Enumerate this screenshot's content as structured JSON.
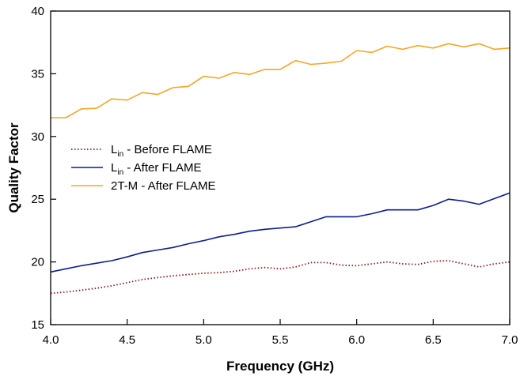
{
  "chart_data": {
    "type": "line",
    "title": "",
    "xlabel": "Frequency (GHz)",
    "ylabel": "Quality Factor",
    "xlim": [
      4.0,
      7.0
    ],
    "ylim": [
      15,
      40
    ],
    "xticks": [
      "4.0",
      "4.5",
      "5.0",
      "5.5",
      "6.0",
      "6.5",
      "7.0"
    ],
    "yticks": [
      "15",
      "20",
      "25",
      "30",
      "35",
      "40"
    ],
    "x": [
      4.0,
      4.1,
      4.2,
      4.3,
      4.4,
      4.5,
      4.6,
      4.7,
      4.8,
      4.9,
      5.0,
      5.1,
      5.2,
      5.3,
      5.4,
      5.5,
      5.6,
      5.7,
      5.8,
      5.9,
      6.0,
      6.1,
      6.2,
      6.3,
      6.4,
      6.5,
      6.6,
      6.7,
      6.8,
      6.9,
      7.0
    ],
    "grid": false,
    "legend_position": "left-middle",
    "series": [
      {
        "legend_main": "L",
        "legend_sub": "in",
        "legend_suffix": " - Before FLAME",
        "color": "#8b1a1a",
        "style": "dotted",
        "values": [
          17.5,
          17.6,
          17.75,
          17.9,
          18.1,
          18.35,
          18.6,
          18.75,
          18.9,
          19.0,
          19.1,
          19.15,
          19.25,
          19.45,
          19.55,
          19.45,
          19.6,
          19.95,
          19.95,
          19.75,
          19.7,
          19.85,
          20.0,
          19.85,
          19.8,
          20.05,
          20.1,
          19.85,
          19.6,
          19.85,
          20.0
        ]
      },
      {
        "legend_main": "L",
        "legend_sub": "in",
        "legend_suffix": " - After FLAME",
        "color": "#0a1f8f",
        "style": "solid",
        "values": [
          19.2,
          19.45,
          19.7,
          19.9,
          20.1,
          20.4,
          20.75,
          20.95,
          21.15,
          21.45,
          21.7,
          22.0,
          22.2,
          22.45,
          22.6,
          22.7,
          22.8,
          23.2,
          23.6,
          23.6,
          23.6,
          23.85,
          24.15,
          24.15,
          24.15,
          24.5,
          25.0,
          24.85,
          24.6,
          25.05,
          25.5
        ]
      },
      {
        "legend_main": "2T-M - After FLAME",
        "legend_sub": "",
        "legend_suffix": "",
        "color": "#f5a623",
        "style": "solid",
        "values": [
          31.5,
          31.5,
          32.2,
          32.25,
          33.0,
          32.9,
          33.5,
          33.35,
          33.9,
          34.0,
          34.8,
          34.65,
          35.1,
          34.95,
          35.35,
          35.35,
          36.05,
          35.75,
          35.85,
          36.0,
          36.85,
          36.7,
          37.2,
          36.95,
          37.25,
          37.05,
          37.4,
          37.15,
          37.4,
          36.95,
          37.05
        ]
      }
    ]
  }
}
